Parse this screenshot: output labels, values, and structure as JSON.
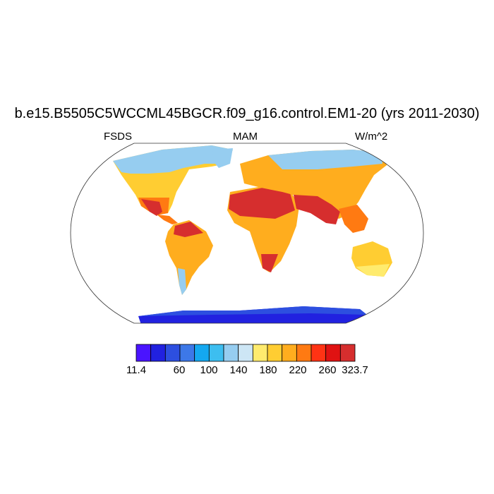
{
  "title": "b.e15.B5505C5WCCML45BGCR.f09_g16.control.EM1-20 (yrs 2011-2030)",
  "left_label": "FSDS",
  "center_label": "MAM",
  "right_label": "W/m^2",
  "colorbar": {
    "colors": [
      "#4a14ff",
      "#2121e0",
      "#2d4fe0",
      "#3d78e8",
      "#14a8f0",
      "#3dbef0",
      "#96cdf0",
      "#cde6f5",
      "#ffeb6e",
      "#ffcd32",
      "#ffad1e",
      "#ff7a12",
      "#ff3314",
      "#e01212",
      "#d62e2e"
    ],
    "labels": [
      "11.4",
      "60",
      "100",
      "140",
      "180",
      "220",
      "260",
      "323.7"
    ]
  }
}
